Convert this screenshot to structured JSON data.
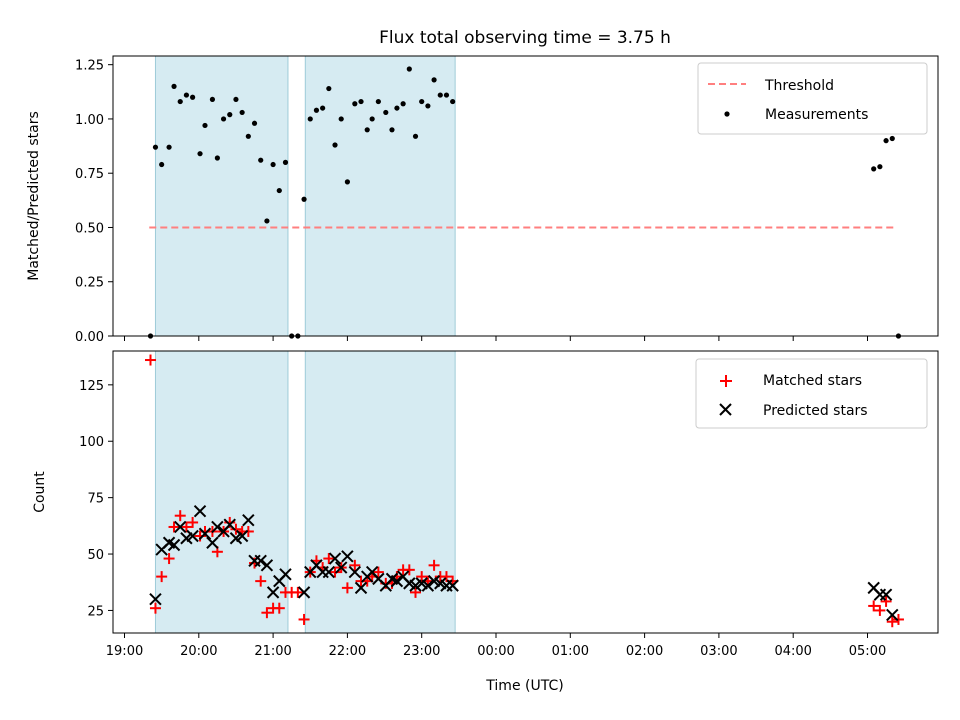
{
  "chart_data": [
    {
      "type": "scatter",
      "title": "Flux total observing time = 3.75 h",
      "xlabel": "",
      "ylabel": "Matched/Predicted stars",
      "xlim": [
        "19:00",
        "06:00"
      ],
      "ylim": [
        0,
        1.29
      ],
      "y_ticks": [
        "0.00",
        "0.25",
        "0.50",
        "0.75",
        "1.00",
        "1.25"
      ],
      "y_tick_values": [
        0,
        0.25,
        0.5,
        0.75,
        1.0,
        1.25
      ],
      "shaded_intervals": [
        [
          "19:25",
          "21:12"
        ],
        [
          "21:26",
          "23:27"
        ]
      ],
      "threshold": {
        "name": "Threshold",
        "value": 0.5,
        "x_range": [
          "19:20",
          "05:23"
        ],
        "color": "#ff7f7f"
      },
      "legend": {
        "placement": "upper right"
      },
      "series": [
        {
          "name": "Measurements",
          "color": "#000000",
          "points": [
            [
              "19:21",
              0.0
            ],
            [
              "19:25",
              0.87
            ],
            [
              "19:30",
              0.79
            ],
            [
              "19:36",
              0.87
            ],
            [
              "19:40",
              1.15
            ],
            [
              "19:45",
              1.08
            ],
            [
              "19:50",
              1.11
            ],
            [
              "19:55",
              1.1
            ],
            [
              "20:01",
              0.84
            ],
            [
              "20:05",
              0.97
            ],
            [
              "20:11",
              1.09
            ],
            [
              "20:15",
              0.82
            ],
            [
              "20:20",
              1.0
            ],
            [
              "20:25",
              1.02
            ],
            [
              "20:30",
              1.09
            ],
            [
              "20:35",
              1.03
            ],
            [
              "20:40",
              0.92
            ],
            [
              "20:45",
              0.98
            ],
            [
              "20:50",
              0.81
            ],
            [
              "20:55",
              0.53
            ],
            [
              "21:00",
              0.79
            ],
            [
              "21:05",
              0.67
            ],
            [
              "21:10",
              0.8
            ],
            [
              "21:15",
              0.0
            ],
            [
              "21:20",
              0.0
            ],
            [
              "21:25",
              0.63
            ],
            [
              "21:30",
              1.0
            ],
            [
              "21:35",
              1.04
            ],
            [
              "21:40",
              1.05
            ],
            [
              "21:45",
              1.14
            ],
            [
              "21:50",
              0.88
            ],
            [
              "21:55",
              1.0
            ],
            [
              "22:00",
              0.71
            ],
            [
              "22:06",
              1.07
            ],
            [
              "22:11",
              1.08
            ],
            [
              "22:16",
              0.95
            ],
            [
              "22:20",
              1.0
            ],
            [
              "22:25",
              1.08
            ],
            [
              "22:31",
              1.03
            ],
            [
              "22:36",
              0.95
            ],
            [
              "22:40",
              1.05
            ],
            [
              "22:45",
              1.07
            ],
            [
              "22:50",
              1.23
            ],
            [
              "22:55",
              0.92
            ],
            [
              "23:00",
              1.08
            ],
            [
              "23:05",
              1.06
            ],
            [
              "23:10",
              1.18
            ],
            [
              "23:15",
              1.11
            ],
            [
              "23:20",
              1.11
            ],
            [
              "23:25",
              1.08
            ],
            [
              "05:05",
              0.77
            ],
            [
              "05:10",
              0.78
            ],
            [
              "05:15",
              0.9
            ],
            [
              "05:20",
              0.91
            ],
            [
              "05:25",
              0.0
            ]
          ]
        }
      ]
    },
    {
      "type": "scatter",
      "title": "",
      "xlabel": "Time (UTC)",
      "ylabel": "Count",
      "xlim": [
        "19:00",
        "06:00"
      ],
      "ylim": [
        15,
        140
      ],
      "y_ticks": [
        "25",
        "50",
        "75",
        "100",
        "125"
      ],
      "y_tick_values": [
        25,
        50,
        75,
        100,
        125
      ],
      "x_ticks": [
        "19:00",
        "20:00",
        "21:00",
        "22:00",
        "23:00",
        "00:00",
        "01:00",
        "02:00",
        "03:00",
        "04:00",
        "05:00"
      ],
      "shaded_intervals": [
        [
          "19:25",
          "21:12"
        ],
        [
          "21:26",
          "23:27"
        ]
      ],
      "legend": {
        "placement": "upper right"
      },
      "series": [
        {
          "name": "Matched stars",
          "color": "#ff0000",
          "marker": "plus",
          "points": [
            [
              "19:21",
              136
            ],
            [
              "19:25",
              26
            ],
            [
              "19:30",
              40
            ],
            [
              "19:36",
              48
            ],
            [
              "19:40",
              62
            ],
            [
              "19:45",
              67
            ],
            [
              "19:50",
              62
            ],
            [
              "19:55",
              64
            ],
            [
              "20:01",
              58
            ],
            [
              "20:05",
              60
            ],
            [
              "20:11",
              60
            ],
            [
              "20:15",
              51
            ],
            [
              "20:20",
              60
            ],
            [
              "20:25",
              64
            ],
            [
              "20:30",
              61
            ],
            [
              "20:35",
              60
            ],
            [
              "20:40",
              60
            ],
            [
              "20:45",
              46
            ],
            [
              "20:50",
              38
            ],
            [
              "20:55",
              24
            ],
            [
              "21:00",
              26
            ],
            [
              "21:05",
              26
            ],
            [
              "21:10",
              33
            ],
            [
              "21:15",
              33
            ],
            [
              "21:20",
              33
            ],
            [
              "21:25",
              21
            ],
            [
              "21:30",
              42
            ],
            [
              "21:35",
              47
            ],
            [
              "21:40",
              44
            ],
            [
              "21:45",
              48
            ],
            [
              "21:50",
              42
            ],
            [
              "21:55",
              44
            ],
            [
              "22:00",
              35
            ],
            [
              "22:06",
              45
            ],
            [
              "22:11",
              38
            ],
            [
              "22:16",
              38
            ],
            [
              "22:20",
              40
            ],
            [
              "22:25",
              42
            ],
            [
              "22:31",
              37
            ],
            [
              "22:36",
              37
            ],
            [
              "22:40",
              40
            ],
            [
              "22:45",
              43
            ],
            [
              "22:50",
              43
            ],
            [
              "22:55",
              33
            ],
            [
              "23:00",
              40
            ],
            [
              "23:05",
              38
            ],
            [
              "23:10",
              45
            ],
            [
              "23:15",
              40
            ],
            [
              "23:20",
              40
            ],
            [
              "23:25",
              38
            ],
            [
              "05:05",
              27
            ],
            [
              "05:10",
              25
            ],
            [
              "05:15",
              29
            ],
            [
              "05:20",
              20
            ],
            [
              "05:25",
              21
            ]
          ]
        },
        {
          "name": "Predicted stars",
          "color": "#000000",
          "marker": "x",
          "points": [
            [
              "19:25",
              30
            ],
            [
              "19:30",
              52
            ],
            [
              "19:36",
              55
            ],
            [
              "19:40",
              54
            ],
            [
              "19:45",
              62
            ],
            [
              "19:50",
              57
            ],
            [
              "19:55",
              58
            ],
            [
              "20:01",
              69
            ],
            [
              "20:05",
              59
            ],
            [
              "20:11",
              55
            ],
            [
              "20:15",
              62
            ],
            [
              "20:20",
              60
            ],
            [
              "20:25",
              63
            ],
            [
              "20:30",
              57
            ],
            [
              "20:35",
              58
            ],
            [
              "20:40",
              65
            ],
            [
              "20:45",
              47
            ],
            [
              "20:50",
              47
            ],
            [
              "20:55",
              45
            ],
            [
              "21:00",
              33
            ],
            [
              "21:05",
              38
            ],
            [
              "21:10",
              41
            ],
            [
              "21:25",
              33
            ],
            [
              "21:30",
              42
            ],
            [
              "21:35",
              45
            ],
            [
              "21:40",
              42
            ],
            [
              "21:45",
              42
            ],
            [
              "21:50",
              48
            ],
            [
              "21:55",
              44
            ],
            [
              "22:00",
              49
            ],
            [
              "22:06",
              42
            ],
            [
              "22:11",
              35
            ],
            [
              "22:16",
              40
            ],
            [
              "22:20",
              42
            ],
            [
              "22:25",
              39
            ],
            [
              "22:31",
              36
            ],
            [
              "22:36",
              39
            ],
            [
              "22:40",
              38
            ],
            [
              "22:45",
              40
            ],
            [
              "22:50",
              37
            ],
            [
              "22:55",
              36
            ],
            [
              "23:00",
              37
            ],
            [
              "23:05",
              36
            ],
            [
              "23:10",
              38
            ],
            [
              "23:15",
              37
            ],
            [
              "23:20",
              36
            ],
            [
              "23:25",
              36
            ],
            [
              "05:05",
              35
            ],
            [
              "05:10",
              32
            ],
            [
              "05:15",
              32
            ],
            [
              "05:20",
              23
            ]
          ]
        }
      ]
    }
  ]
}
